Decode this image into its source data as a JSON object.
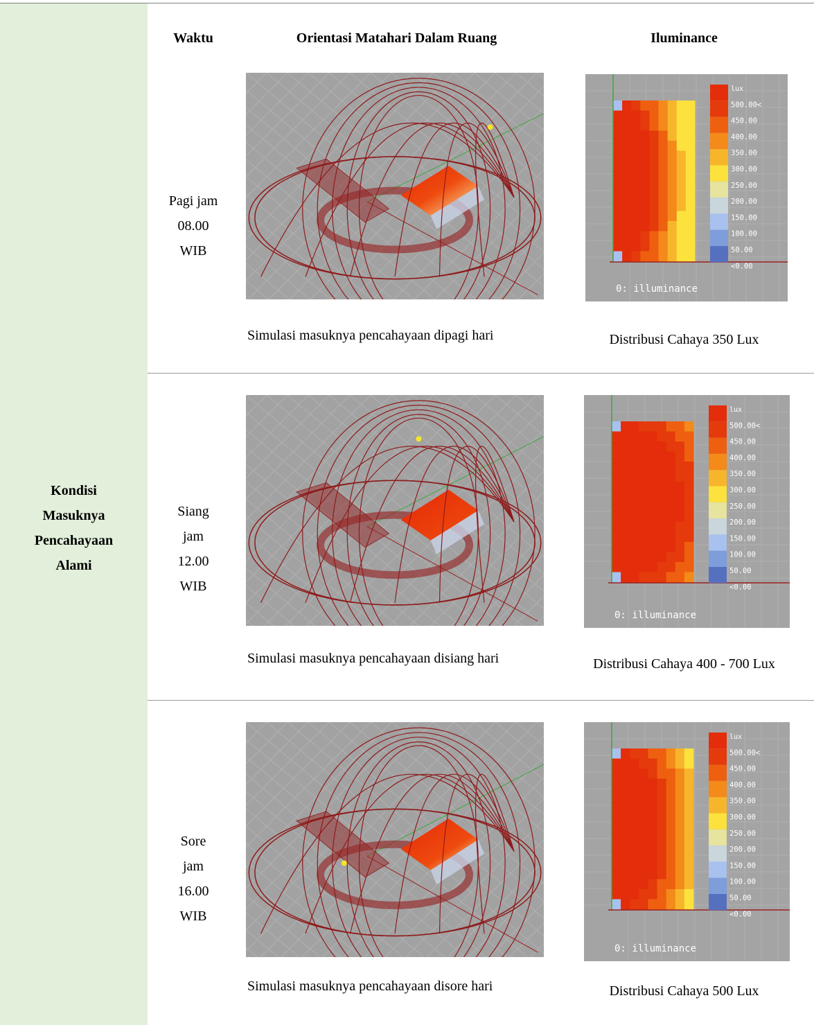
{
  "header": {
    "columns": [
      "Waktu",
      "Orientasi Matahari Dalam Ruang",
      "Iluminance"
    ]
  },
  "side_label": [
    "Kondisi",
    "Masuknya",
    "Pencahayaan",
    "Alami"
  ],
  "legend": {
    "title": "lux",
    "labels": [
      "500.00<",
      "450.00",
      "400.00",
      "350.00",
      "300.00",
      "250.00",
      "200.00",
      "150.00",
      "100.00",
      "50.00",
      "<0.00"
    ],
    "footer": "0: illuminance"
  },
  "rows": [
    {
      "time": [
        "Pagi jam",
        "08.00",
        "WIB"
      ],
      "caption": "Simulasi masuknya pencahayaan dipagi hari",
      "distribution": "Distribusi Cahaya 350 Lux"
    },
    {
      "time": [
        "Siang",
        "jam",
        "12.00",
        "WIB"
      ],
      "caption": "Simulasi masuknya pencahayaan disiang hari",
      "distribution": "Distribusi Cahaya 400 - 700 Lux"
    },
    {
      "time": [
        "Sore",
        "jam",
        "16.00",
        "WIB"
      ],
      "caption": "Simulasi masuknya pencahayaan disore hari",
      "distribution": "Distribusi Cahaya 500 Lux"
    }
  ]
}
